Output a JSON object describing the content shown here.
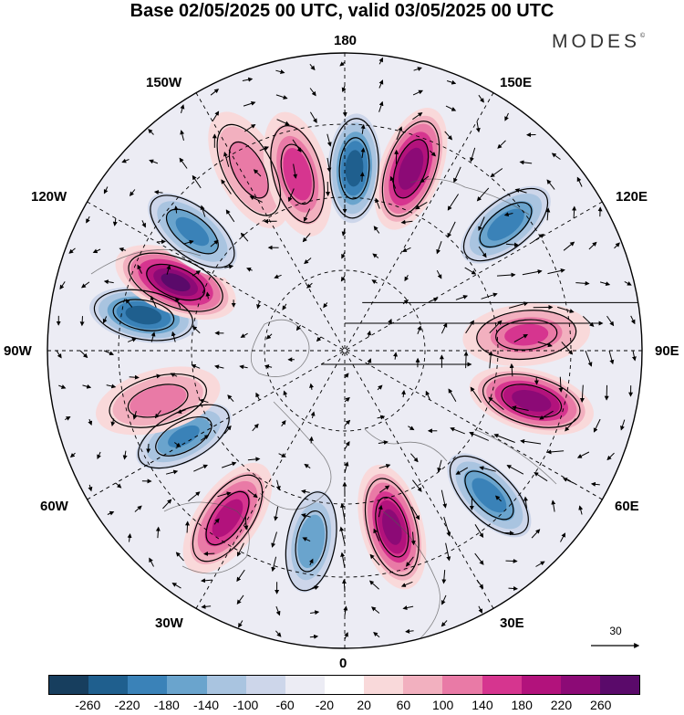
{
  "title": "Base 02/05/2025 00 UTC, valid 03/05/2025 00 UTC",
  "brand": "MODES",
  "brand_mark": "©",
  "longitude_labels": {
    "top": "180",
    "top_left": "150W",
    "top_right": "150E",
    "upper_left": "120W",
    "upper_right": "120E",
    "left": "90W",
    "right": "90E",
    "lower_left": "60W",
    "lower_right": "60E",
    "bottom_left": "30W",
    "bottom_right": "30E",
    "bottom": "0"
  },
  "vector_reference": "30",
  "colorbar": {
    "colors": [
      "#173e5e",
      "#1f5f8e",
      "#3a82b8",
      "#6aa4cd",
      "#a9c4e0",
      "#cdd6ea",
      "#ececf4",
      "#ffffff",
      "#f9d9da",
      "#f2b0bf",
      "#e97aa6",
      "#d6358f",
      "#b2127c",
      "#8c0a76",
      "#5a0a6a"
    ],
    "tick_labels": [
      "-260",
      "-220",
      "-180",
      "-140",
      "-100",
      "-60",
      "-20",
      "20",
      "60",
      "100",
      "140",
      "180",
      "220",
      "260"
    ]
  },
  "map": {
    "projection": "north polar stereographic",
    "field": "anomaly shading with wind vectors",
    "anomaly_cells": [
      {
        "lon_deg": 177,
        "intensity": -230
      },
      {
        "lon_deg": 160,
        "intensity": 250
      },
      {
        "lon_deg": 128,
        "intensity": -200
      },
      {
        "lon_deg": 95,
        "intensity": 150
      },
      {
        "lon_deg": 75,
        "intensity": 240
      },
      {
        "lon_deg": 45,
        "intensity": -200
      },
      {
        "lon_deg": 15,
        "intensity": 230
      },
      {
        "lon_deg": -10,
        "intensity": -170
      },
      {
        "lon_deg": -35,
        "intensity": 200
      },
      {
        "lon_deg": -62,
        "intensity": -180
      },
      {
        "lon_deg": -75,
        "intensity": 120
      },
      {
        "lon_deg": -100,
        "intensity": -230
      },
      {
        "lon_deg": -112,
        "intensity": 260
      },
      {
        "lon_deg": -128,
        "intensity": -190
      },
      {
        "lon_deg": -152,
        "intensity": 130
      },
      {
        "lon_deg": -165,
        "intensity": 170
      }
    ]
  }
}
